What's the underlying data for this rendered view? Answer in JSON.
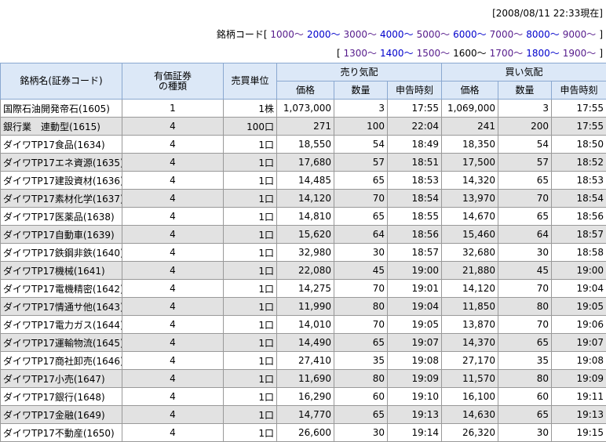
{
  "header": {
    "timestamp": "[2008/08/11 22:33現在]"
  },
  "codes": {
    "label": "銘柄コード",
    "open": "[",
    "close": "]",
    "links": [
      "1000～",
      "2000～",
      "3000～",
      "4000～",
      "5000～",
      "6000～",
      "7000～",
      "8000～",
      "9000～"
    ]
  },
  "subcodes": {
    "open": "[",
    "close": "]",
    "links": [
      "1300～",
      "1400～",
      "1500～",
      "1600～",
      "1700～",
      "1800～",
      "1900～"
    ]
  },
  "table": {
    "headers": {
      "name": "銘柄名(証券コード)",
      "type": "有価証券\nの種類",
      "unit": "売買単位",
      "sell": "売り気配",
      "buy": "買い気配",
      "sub": [
        "価格",
        "数量",
        "申告時刻",
        "価格",
        "数量",
        "申告時刻"
      ]
    },
    "rows": [
      [
        "国際石油開発帝石(1605)",
        "1",
        "1株",
        "1,073,000",
        "3",
        "17:55",
        "1,069,000",
        "3",
        "17:55"
      ],
      [
        "銀行業　連動型(1615)",
        "4",
        "100口",
        "271",
        "100",
        "22:04",
        "241",
        "200",
        "17:55"
      ],
      [
        "ダイワTP17食品(1634)",
        "4",
        "1口",
        "18,550",
        "54",
        "18:49",
        "18,350",
        "54",
        "18:50"
      ],
      [
        "ダイワTP17エネ資源(1635)",
        "4",
        "1口",
        "17,680",
        "57",
        "18:51",
        "17,500",
        "57",
        "18:52"
      ],
      [
        "ダイワTP17建設資材(1636)",
        "4",
        "1口",
        "14,485",
        "65",
        "18:53",
        "14,320",
        "65",
        "18:53"
      ],
      [
        "ダイワTP17素材化学(1637)",
        "4",
        "1口",
        "14,120",
        "70",
        "18:54",
        "13,970",
        "70",
        "18:54"
      ],
      [
        "ダイワTP17医薬品(1638)",
        "4",
        "1口",
        "14,810",
        "65",
        "18:55",
        "14,670",
        "65",
        "18:56"
      ],
      [
        "ダイワTP17自動車(1639)",
        "4",
        "1口",
        "15,620",
        "64",
        "18:56",
        "15,460",
        "64",
        "18:57"
      ],
      [
        "ダイワTP17鉄鋼非鉄(1640)",
        "4",
        "1口",
        "32,980",
        "30",
        "18:57",
        "32,680",
        "30",
        "18:58"
      ],
      [
        "ダイワTP17機械(1641)",
        "4",
        "1口",
        "22,080",
        "45",
        "19:00",
        "21,880",
        "45",
        "19:00"
      ],
      [
        "ダイワTP17電機精密(1642)",
        "4",
        "1口",
        "14,275",
        "70",
        "19:01",
        "14,120",
        "70",
        "19:04"
      ],
      [
        "ダイワTP17情通サ他(1643)",
        "4",
        "1口",
        "11,990",
        "80",
        "19:04",
        "11,850",
        "80",
        "19:05"
      ],
      [
        "ダイワTP17電力ガス(1644)",
        "4",
        "1口",
        "14,010",
        "70",
        "19:05",
        "13,870",
        "70",
        "19:06"
      ],
      [
        "ダイワTP17運輸物流(1645)",
        "4",
        "1口",
        "14,490",
        "65",
        "19:07",
        "14,370",
        "65",
        "19:07"
      ],
      [
        "ダイワTP17商社卸売(1646)",
        "4",
        "1口",
        "27,410",
        "35",
        "19:08",
        "27,170",
        "35",
        "19:08"
      ],
      [
        "ダイワTP17小売(1647)",
        "4",
        "1口",
        "11,690",
        "80",
        "19:09",
        "11,570",
        "80",
        "19:09"
      ],
      [
        "ダイワTP17銀行(1648)",
        "4",
        "1口",
        "16,290",
        "60",
        "19:10",
        "16,100",
        "60",
        "19:11"
      ],
      [
        "ダイワTP17金融(1649)",
        "4",
        "1口",
        "14,770",
        "65",
        "19:13",
        "14,630",
        "65",
        "19:13"
      ],
      [
        "ダイワTP17不動産(1650)",
        "4",
        "1口",
        "26,600",
        "30",
        "19:14",
        "26,320",
        "30",
        "19:15"
      ]
    ]
  }
}
